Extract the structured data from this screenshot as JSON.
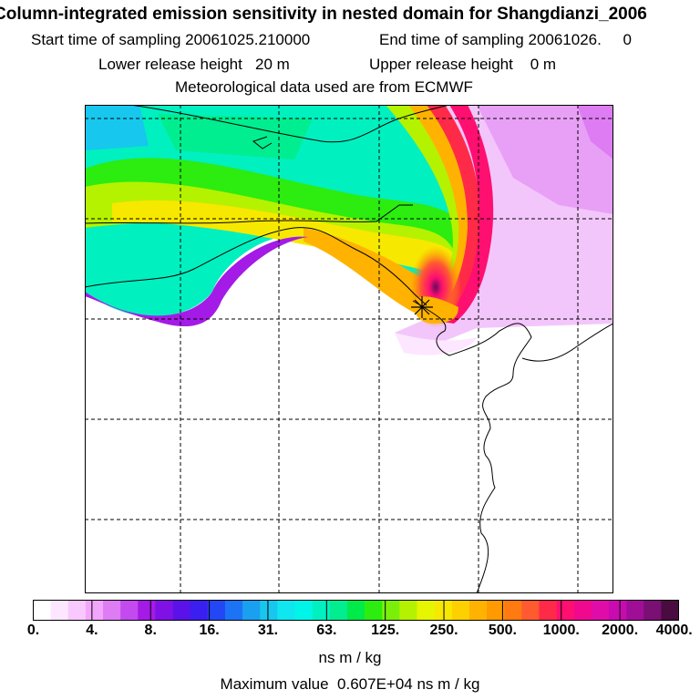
{
  "header": {
    "title": "Column-integrated emission sensitivity in nested domain for Shangdianzi_2006",
    "start_label": "Start time of sampling",
    "start_value": "20061025.210000",
    "end_label": "End time of sampling",
    "end_value": "20061026.     0",
    "lower_label": "Lower release height",
    "lower_value": "20 m",
    "upper_label": "Upper release height",
    "upper_value": "0 m",
    "met_line": "Meteorological data used are from ECMWF"
  },
  "colorbar": {
    "colors": [
      "#ffffff",
      "#fde6ff",
      "#f9c8ff",
      "#f2a6fb",
      "#dd7cf3",
      "#c24aef",
      "#a41ae6",
      "#7f10e6",
      "#5a12e8",
      "#3a1ff0",
      "#2347f5",
      "#1c73f5",
      "#1aa0f0",
      "#17c7ee",
      "#0fe6f0",
      "#00f5e8",
      "#00f0c0",
      "#00ee90",
      "#00ea4a",
      "#2cec10",
      "#7af00a",
      "#b5f200",
      "#e6f500",
      "#f7e800",
      "#ffd000",
      "#ffb300",
      "#ff9a00",
      "#ff7a10",
      "#ff5a30",
      "#ff2a48",
      "#ff0f70",
      "#f0088f",
      "#e00ca8",
      "#c80ab0",
      "#a00e98",
      "#7a0f74",
      "#4a0c40"
    ],
    "ticks": [
      "0.",
      "4.",
      "8.",
      "16.",
      "31.",
      "63.",
      "125.",
      "250.",
      "500.",
      "1000.",
      "2000.",
      "4000."
    ],
    "units": "ns m / kg"
  },
  "footer": {
    "max_value_text": "Maximum value  0.607E+04 ns m / kg"
  }
}
